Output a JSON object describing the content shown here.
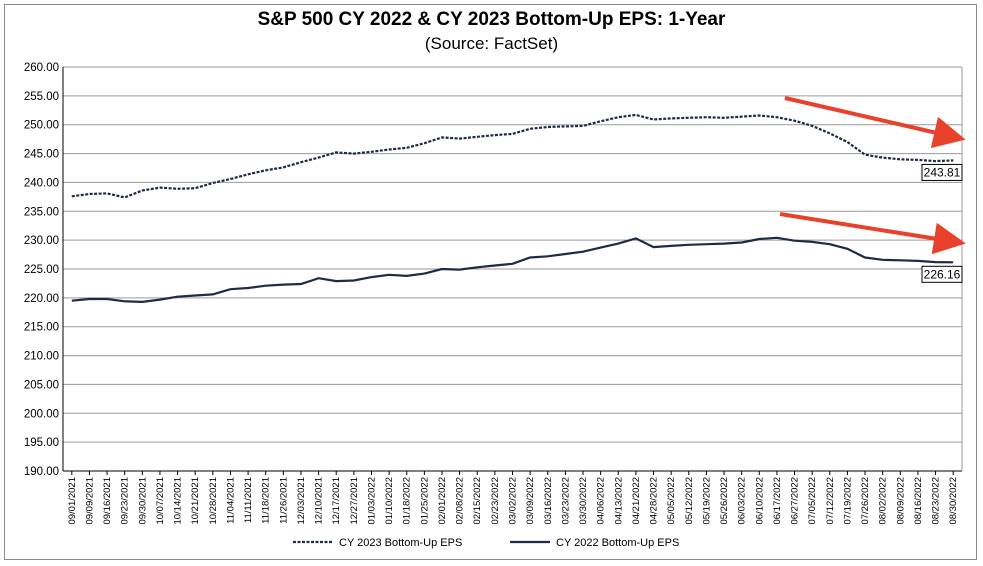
{
  "chart_data": {
    "type": "line",
    "title": "S&P 500 CY 2022 & CY 2023 Bottom-Up  EPS: 1-Year",
    "subtitle": "(Source: FactSet)",
    "xlabel": "",
    "ylabel": "",
    "ylim": [
      190,
      260
    ],
    "y_step": 5,
    "grid": true,
    "legend_position": "bottom",
    "x_ticks": [
      "09/01/2021",
      "09/09/2021",
      "09/16/2021",
      "09/23/2021",
      "09/30/2021",
      "10/07/2021",
      "10/14/2021",
      "10/21/2021",
      "10/28/2021",
      "11/04/2021",
      "11/11/2021",
      "11/18/2021",
      "11/26/2021",
      "12/03/2021",
      "12/10/2021",
      "12/17/2021",
      "12/27/2021",
      "01/03/2022",
      "01/10/2022",
      "01/18/2022",
      "01/25/2022",
      "02/01/2022",
      "02/08/2022",
      "02/15/2022",
      "02/23/2022",
      "03/02/2022",
      "03/09/2022",
      "03/16/2022",
      "03/23/2022",
      "03/30/2022",
      "04/06/2022",
      "04/13/2022",
      "04/21/2022",
      "04/28/2022",
      "05/05/2022",
      "05/12/2022",
      "05/19/2022",
      "05/26/2022",
      "06/03/2022",
      "06/10/2022",
      "06/17/2022",
      "06/27/2022",
      "07/05/2022",
      "07/12/2022",
      "07/19/2022",
      "07/26/2022",
      "08/02/2022",
      "08/09/2022",
      "08/16/2022",
      "08/23/2022",
      "08/30/2022"
    ],
    "series": [
      {
        "name": "CY 2023 Bottom-Up EPS",
        "style": "dashed",
        "color": "#1f2a44",
        "end_label": "243.81",
        "values": [
          237.6,
          238.0,
          238.1,
          237.4,
          238.6,
          239.1,
          238.9,
          239.0,
          239.9,
          240.6,
          241.4,
          242.1,
          242.6,
          243.5,
          244.3,
          245.2,
          245.0,
          245.3,
          245.7,
          246.0,
          246.8,
          247.8,
          247.6,
          247.9,
          248.2,
          248.4,
          249.3,
          249.6,
          249.7,
          249.8,
          250.6,
          251.3,
          251.7,
          250.9,
          251.1,
          251.2,
          251.3,
          251.2,
          251.4,
          251.6,
          251.3,
          250.7,
          249.8,
          248.5,
          247.0,
          244.8,
          244.3,
          244.0,
          243.9,
          243.7,
          243.81
        ]
      },
      {
        "name": "CY 2022 Bottom-Up EPS",
        "style": "solid",
        "color": "#1f2a44",
        "end_label": "226.16",
        "values": [
          219.5,
          219.8,
          219.8,
          219.4,
          219.3,
          219.7,
          220.2,
          220.4,
          220.6,
          221.5,
          221.7,
          222.1,
          222.3,
          222.4,
          223.4,
          222.9,
          223.0,
          223.6,
          224.0,
          223.8,
          224.2,
          225.0,
          224.9,
          225.3,
          225.6,
          225.9,
          227.0,
          227.2,
          227.6,
          228.0,
          228.7,
          229.4,
          230.3,
          228.8,
          229.0,
          229.2,
          229.3,
          229.4,
          229.6,
          230.2,
          230.4,
          229.9,
          229.7,
          229.3,
          228.5,
          227.0,
          226.6,
          226.5,
          226.4,
          226.2,
          226.16
        ]
      }
    ],
    "annotations": [
      {
        "type": "arrow",
        "color": "#e8412c",
        "direction": "down-right"
      },
      {
        "type": "arrow",
        "color": "#e8412c",
        "direction": "down-right"
      }
    ]
  }
}
